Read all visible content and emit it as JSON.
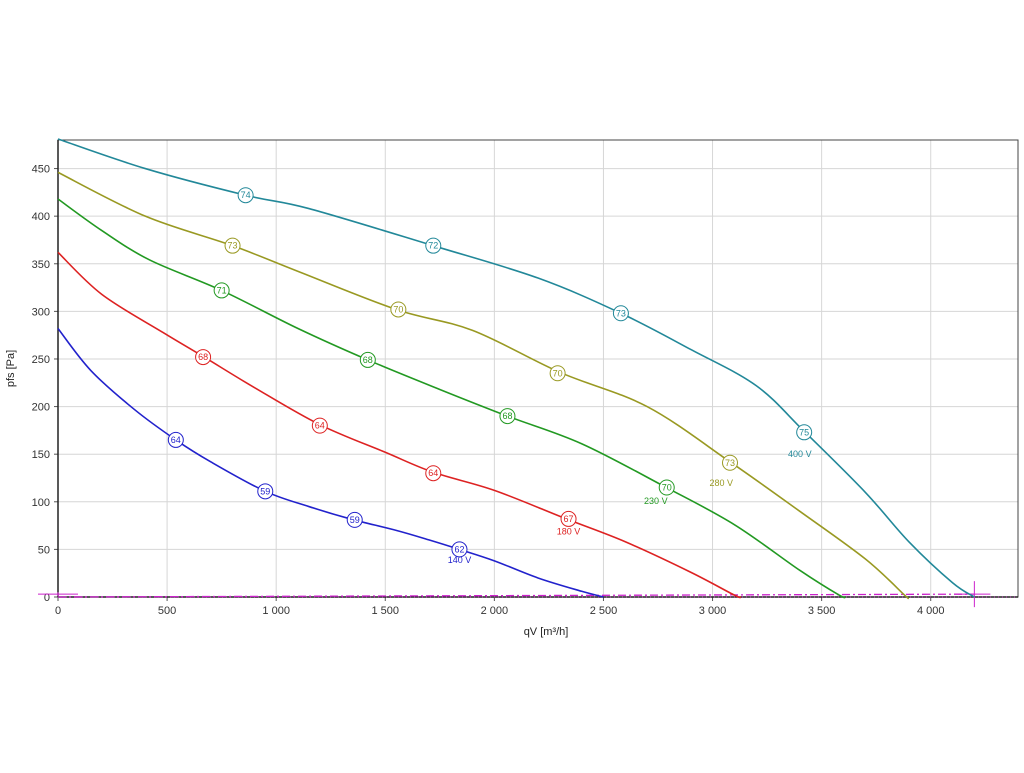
{
  "chart_data": {
    "type": "line",
    "xlabel": "qV [m³/h]",
    "ylabel": "pfs [Pa]",
    "xlim": [
      0,
      4400
    ],
    "ylim": [
      0,
      480
    ],
    "x_ticks": [
      {
        "value": 0,
        "label": "0"
      },
      {
        "value": 500,
        "label": "500"
      },
      {
        "value": 1000,
        "label": "1 000"
      },
      {
        "value": 1500,
        "label": "1 500"
      },
      {
        "value": 2000,
        "label": "2 000"
      },
      {
        "value": 2500,
        "label": "2 500"
      },
      {
        "value": 3000,
        "label": "3 000"
      },
      {
        "value": 3500,
        "label": "3 500"
      },
      {
        "value": 4000,
        "label": "4 000"
      }
    ],
    "y_ticks": [
      {
        "value": 0,
        "label": "0"
      },
      {
        "value": 50,
        "label": "50"
      },
      {
        "value": 100,
        "label": "100"
      },
      {
        "value": 150,
        "label": "150"
      },
      {
        "value": 200,
        "label": "200"
      },
      {
        "value": 250,
        "label": "250"
      },
      {
        "value": 300,
        "label": "300"
      },
      {
        "value": 350,
        "label": "350"
      },
      {
        "value": 400,
        "label": "400"
      },
      {
        "value": 450,
        "label": "450"
      }
    ],
    "grid": true,
    "series": [
      {
        "name": "140 V",
        "color": "#2222cc",
        "points": [
          [
            0,
            282
          ],
          [
            150,
            238
          ],
          [
            350,
            197
          ],
          [
            540,
            165
          ],
          [
            700,
            142
          ],
          [
            950,
            111
          ],
          [
            1150,
            95
          ],
          [
            1340,
            82
          ],
          [
            1550,
            70
          ],
          [
            1700,
            60
          ],
          [
            1840,
            50
          ],
          [
            2000,
            38
          ],
          [
            2200,
            20
          ],
          [
            2400,
            6
          ],
          [
            2500,
            0
          ]
        ],
        "markers": [
          {
            "x": 540,
            "y": 165,
            "label": "64"
          },
          {
            "x": 950,
            "y": 111,
            "label": "59"
          },
          {
            "x": 1360,
            "y": 81,
            "label": "59"
          },
          {
            "x": 1840,
            "y": 50,
            "label": "62"
          }
        ],
        "label_at": {
          "x": 1840,
          "y": 39
        }
      },
      {
        "name": "180 V",
        "color": "#dd2222",
        "points": [
          [
            0,
            362
          ],
          [
            200,
            318
          ],
          [
            480,
            278
          ],
          [
            670,
            252
          ],
          [
            900,
            220
          ],
          [
            1200,
            181
          ],
          [
            1500,
            152
          ],
          [
            1720,
            131
          ],
          [
            2000,
            112
          ],
          [
            2330,
            82
          ],
          [
            2600,
            58
          ],
          [
            2900,
            26
          ],
          [
            3100,
            2
          ],
          [
            3130,
            0
          ]
        ],
        "markers": [
          {
            "x": 665,
            "y": 252,
            "label": "68"
          },
          {
            "x": 1200,
            "y": 180,
            "label": "64"
          },
          {
            "x": 1720,
            "y": 130,
            "label": "64"
          },
          {
            "x": 2340,
            "y": 82,
            "label": "67"
          }
        ],
        "label_at": {
          "x": 2340,
          "y": 69
        }
      },
      {
        "name": "230 V",
        "color": "#229922",
        "points": [
          [
            0,
            418
          ],
          [
            200,
            385
          ],
          [
            420,
            354
          ],
          [
            750,
            322
          ],
          [
            1100,
            282
          ],
          [
            1420,
            249
          ],
          [
            1750,
            218
          ],
          [
            2060,
            190
          ],
          [
            2400,
            161
          ],
          [
            2780,
            116
          ],
          [
            3100,
            76
          ],
          [
            3400,
            28
          ],
          [
            3580,
            2
          ],
          [
            3610,
            0
          ]
        ],
        "markers": [
          {
            "x": 750,
            "y": 322,
            "label": "71"
          },
          {
            "x": 1420,
            "y": 249,
            "label": "68"
          },
          {
            "x": 2060,
            "y": 190,
            "label": "68"
          },
          {
            "x": 2790,
            "y": 115,
            "label": "70"
          }
        ],
        "label_at": {
          "x": 2740,
          "y": 101
        }
      },
      {
        "name": "280 V",
        "color": "#999922",
        "points": [
          [
            0,
            446
          ],
          [
            400,
            400
          ],
          [
            800,
            369
          ],
          [
            1100,
            342
          ],
          [
            1550,
            302
          ],
          [
            1900,
            280
          ],
          [
            2300,
            236
          ],
          [
            2700,
            200
          ],
          [
            3080,
            142
          ],
          [
            3400,
            90
          ],
          [
            3700,
            40
          ],
          [
            3880,
            2
          ],
          [
            3890,
            0
          ]
        ],
        "markers": [
          {
            "x": 800,
            "y": 369,
            "label": "73"
          },
          {
            "x": 1560,
            "y": 302,
            "label": "70"
          },
          {
            "x": 2290,
            "y": 235,
            "label": "70"
          },
          {
            "x": 3080,
            "y": 141,
            "label": "73"
          }
        ],
        "label_at": {
          "x": 3040,
          "y": 120
        }
      },
      {
        "name": "400 V",
        "color": "#228899",
        "points": [
          [
            0,
            481
          ],
          [
            400,
            450
          ],
          [
            860,
            422
          ],
          [
            1150,
            408
          ],
          [
            1720,
            369
          ],
          [
            2200,
            335
          ],
          [
            2580,
            298
          ],
          [
            2900,
            260
          ],
          [
            3200,
            222
          ],
          [
            3420,
            174
          ],
          [
            3700,
            110
          ],
          [
            3900,
            58
          ],
          [
            4100,
            15
          ],
          [
            4200,
            0
          ]
        ],
        "markers": [
          {
            "x": 860,
            "y": 422,
            "label": "74"
          },
          {
            "x": 1720,
            "y": 369,
            "label": "72"
          },
          {
            "x": 2580,
            "y": 298,
            "label": "73"
          },
          {
            "x": 3420,
            "y": 173,
            "label": "75"
          }
        ],
        "label_at": {
          "x": 3400,
          "y": 150
        }
      }
    ],
    "system_line": {
      "color": "#cc22cc",
      "points": [
        [
          0,
          0
        ],
        [
          4200,
          3
        ]
      ],
      "endpoints": [
        {
          "x": 0,
          "y": 3
        },
        {
          "x": 4200,
          "y": 3
        }
      ]
    }
  }
}
